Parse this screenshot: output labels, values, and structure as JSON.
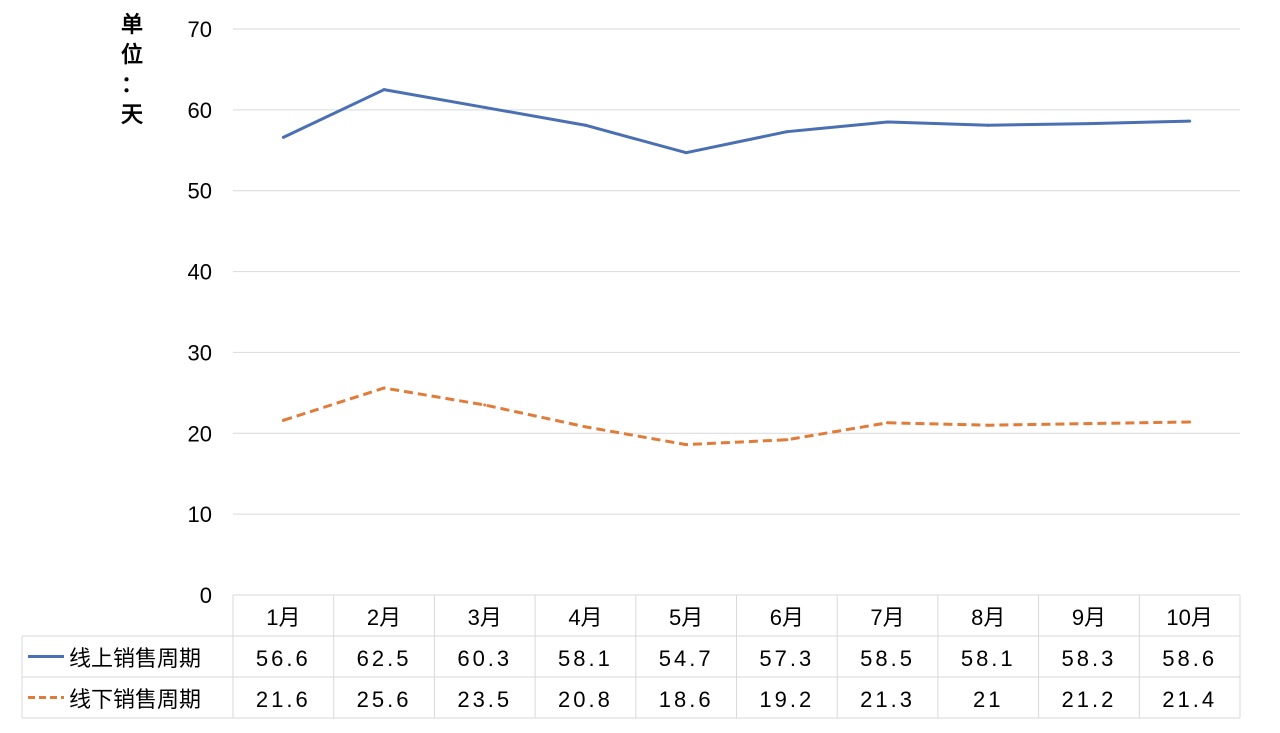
{
  "chart_data": {
    "type": "line",
    "ylabel": "单位：天",
    "ylim": [
      0,
      70
    ],
    "yticks": [
      "0",
      "10",
      "20",
      "30",
      "40",
      "50",
      "60",
      "70"
    ],
    "categories": [
      "1月",
      "2月",
      "3月",
      "4月",
      "5月",
      "6月",
      "7月",
      "8月",
      "9月",
      "10月"
    ],
    "series": [
      {
        "name": "线上销售周期",
        "values": [
          56.6,
          62.5,
          60.3,
          58.1,
          54.7,
          57.3,
          58.5,
          58.1,
          58.3,
          58.6
        ],
        "labels": [
          "56.6",
          "62.5",
          "60.3",
          "58.1",
          "54.7",
          "57.3",
          "58.5",
          "58.1",
          "58.3",
          "58.6"
        ],
        "color": "#4a6fb3",
        "dash": "solid"
      },
      {
        "name": "线下销售周期",
        "values": [
          21.6,
          25.6,
          23.5,
          20.8,
          18.6,
          19.2,
          21.3,
          21,
          21.2,
          21.4
        ],
        "labels": [
          "21.6",
          "25.6",
          "23.5",
          "20.8",
          "18.6",
          "19.2",
          "21.3",
          "21",
          "21.2",
          "21.4"
        ],
        "color": "#e07b39",
        "dash": "dashed"
      }
    ],
    "grid": true,
    "legend": "data-table"
  }
}
